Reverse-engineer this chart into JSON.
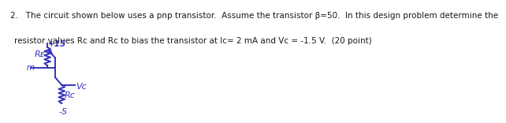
{
  "text_line1": "2.   The circuit shown below uses a pnp transistor.  Assume the transistor β=50.  In this design problem determine the",
  "text_line2": "resistor values Rᴄ and Rᴄ to bias the transistor at Iᴄ= 2 mA and Vᴄ = -1.5 V.  (20 point)",
  "text_line2_raw": "resistor values Rᴁ and Rᴄ to bias the transistor at Iᴄ= 2 mA and Vᴄ = -1.5 V.  (20 point)",
  "bg_color": "#ffffff",
  "text_color": "#1a1a1a",
  "circuit_color": "#3333bb",
  "font_size": 7.5,
  "lw": 1.4
}
